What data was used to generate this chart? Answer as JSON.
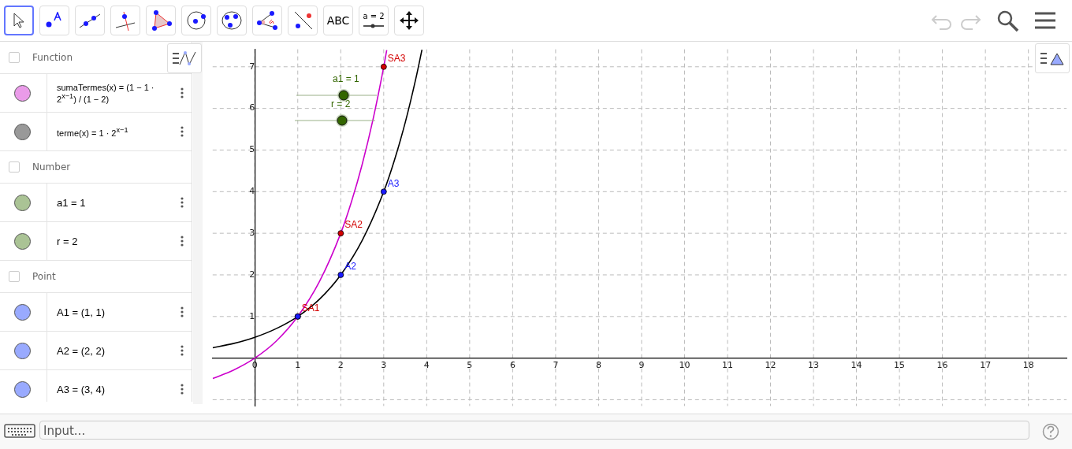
{
  "chart_data": {
    "type": "line",
    "xlim": [
      -0.98,
      18.89
    ],
    "ylim": [
      -1.15,
      7.42
    ],
    "xticks": [
      0,
      1,
      2,
      3,
      4,
      5,
      6,
      7,
      8,
      9,
      10,
      11,
      12,
      13,
      14,
      15,
      16,
      17,
      18
    ],
    "yticks": [
      {
        "value": -1,
        "label": null
      },
      1,
      2,
      3,
      4,
      5,
      6,
      7
    ],
    "grid": true,
    "legend": false,
    "series": [
      {
        "color": "#cc00cc",
        "x": [
          -0.98,
          -0.5,
          0,
          0.5,
          1,
          1.5,
          2,
          2.25,
          2.5,
          2.75,
          3,
          3.07
        ],
        "values": [
          -0.49,
          -0.29,
          0,
          0.41,
          1,
          1.83,
          3,
          3.76,
          4.66,
          5.73,
          7,
          7.4
        ]
      },
      {
        "color": "#000000",
        "x": [
          -0.98,
          -0.5,
          0,
          0.5,
          1,
          1.5,
          2,
          2.5,
          3,
          3.25,
          3.5,
          3.75,
          3.89
        ],
        "values": [
          0.25,
          0.35,
          0.5,
          0.71,
          1,
          1.41,
          2,
          2.83,
          4,
          4.76,
          5.66,
          6.73,
          7.41
        ]
      },
      {
        "type": "scatter",
        "marker": "circle",
        "color": "#1a1aff",
        "x": [
          1,
          2,
          3
        ],
        "values": [
          1,
          2,
          4
        ],
        "value_labels": [
          null,
          "A2",
          "A3"
        ]
      },
      {
        "type": "scatter",
        "marker": "circle",
        "color": "#d40000",
        "x": [
          1,
          2,
          3
        ],
        "values": [
          1,
          3,
          7
        ],
        "value_labels": [
          "SA1",
          "SA2",
          "SA3"
        ]
      }
    ],
    "annotations": [
      "Function",
      "sumaTermes(x) = (1 − 1 · 2$^{x−1}$) / (1 − 2)",
      "terme(x) = 1 · 2$^{x−1}$",
      "Number",
      "a1 = 1",
      "r = 2",
      "Point",
      "A1 = (1, 1)",
      "A2 = (2, 2)",
      "A3 = (3, 4)",
      "ABC",
      "a = 2",
      "Input...",
      "a1 = 1",
      "r = 2"
    ]
  }
}
